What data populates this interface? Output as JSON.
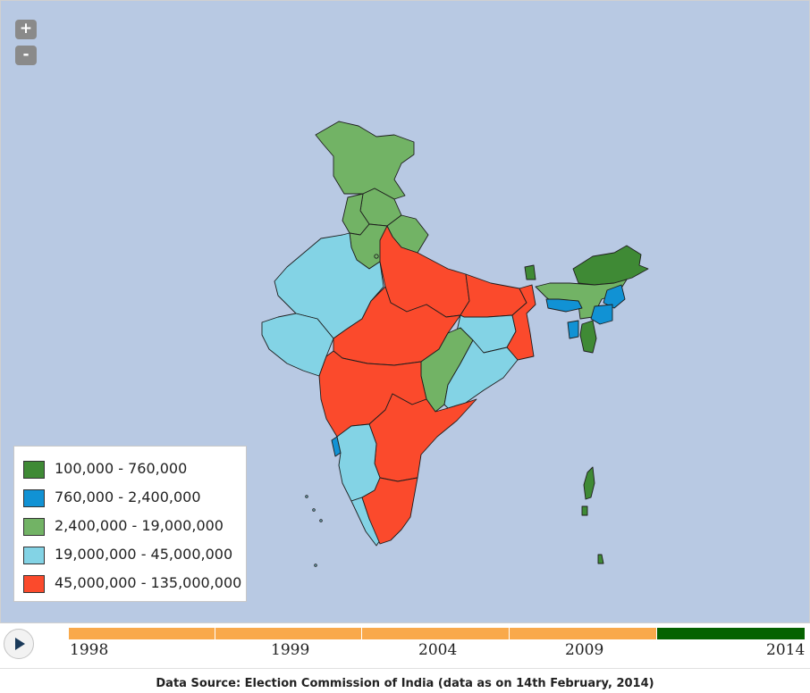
{
  "map": {
    "zoom_in_label": "+",
    "zoom_out_label": "-",
    "colors": {
      "water": "#b8c9e3",
      "class1": "#3f8a35",
      "class2": "#1192d4",
      "class3": "#72b365",
      "class4": "#83d3e5",
      "class5": "#fb4a2c",
      "border": "#1e1e1e"
    }
  },
  "legend": {
    "items": [
      {
        "label": "100,000 - 760,000",
        "color": "#3f8a35"
      },
      {
        "label": "760,000 - 2,400,000",
        "color": "#1192d4"
      },
      {
        "label": "2,400,000 - 19,000,000",
        "color": "#72b365"
      },
      {
        "label": "19,000,000 - 45,000,000",
        "color": "#83d3e5"
      },
      {
        "label": "45,000,000 - 135,000,000",
        "color": "#fb4a2c"
      }
    ]
  },
  "timeline": {
    "years": [
      "1998",
      "1999",
      "2004",
      "2009",
      "2014"
    ],
    "selected_year": "2014",
    "colors": {
      "inactive": "#f9a94b",
      "active": "#056200"
    }
  },
  "footer": {
    "source": "Data Source: Election Commission of India (data as on 14th February, 2014)"
  }
}
